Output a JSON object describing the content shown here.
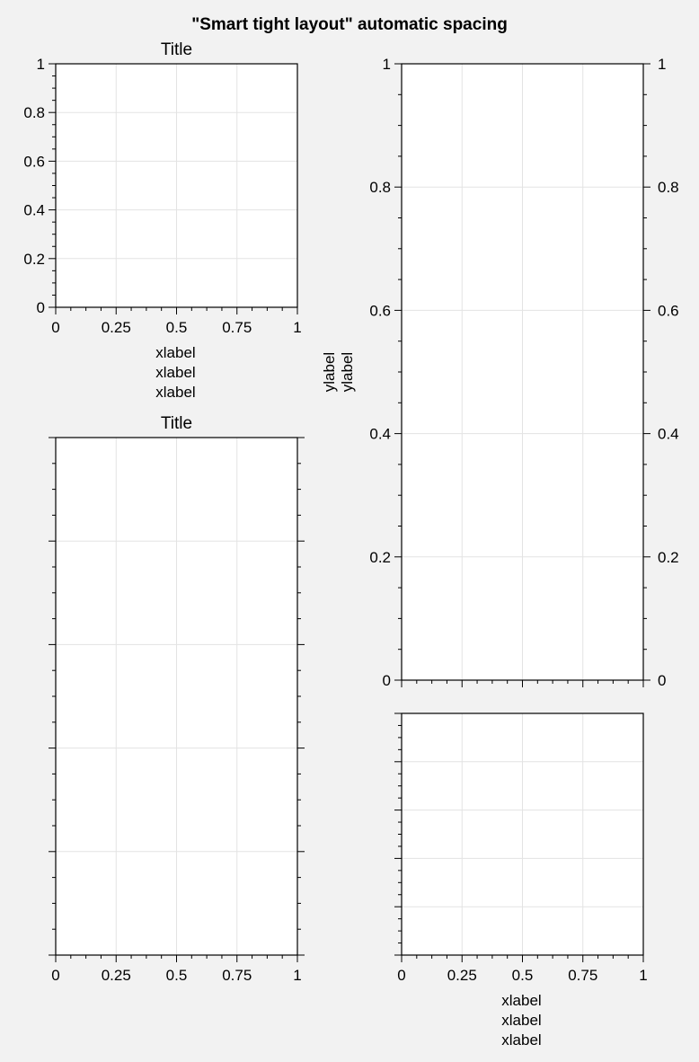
{
  "figure": {
    "suptitle": "\"Smart tight layout\" automatic spacing"
  },
  "colors": {
    "background": "#f2f2f2",
    "axes_face": "#ffffff",
    "grid": "#e3e3e3",
    "spine": "#000000"
  },
  "chart_data": [
    {
      "id": "panel-1",
      "type": "line",
      "title": "Title",
      "xlabel_lines": [
        "xlabel",
        "xlabel",
        "xlabel"
      ],
      "ylabel_lines": [],
      "xlim": [
        0,
        1
      ],
      "ylim": [
        0,
        1
      ],
      "xticks": [
        0,
        0.25,
        0.5,
        0.75,
        1
      ],
      "xticklabels": [
        "0",
        "0.25",
        "0.5",
        "0.75",
        "1"
      ],
      "yticks": [
        0,
        0.2,
        0.4,
        0.6,
        0.8,
        1
      ],
      "yticklabels": [
        "0",
        "0.2",
        "0.4",
        "0.6",
        "0.8",
        "1"
      ],
      "show_left_labels": true,
      "show_right_labels": false,
      "right_ticks": false,
      "grid": true,
      "x_minor_step": 0.0625,
      "y_minor_step": 0.05,
      "series": []
    },
    {
      "id": "panel-2",
      "type": "line",
      "title": "",
      "xlabel_lines": [],
      "ylabel_lines": [
        "ylabel",
        "ylabel"
      ],
      "xlim": [
        0,
        1
      ],
      "ylim": [
        0,
        1
      ],
      "xticks": [
        0,
        0.25,
        0.5,
        0.75,
        1
      ],
      "xticklabels": [],
      "yticks": [
        0,
        0.2,
        0.4,
        0.6,
        0.8,
        1
      ],
      "yticklabels": [
        "0",
        "0.2",
        "0.4",
        "0.6",
        "0.8",
        "1"
      ],
      "show_left_labels": true,
      "show_right_labels": true,
      "right_ticks": true,
      "grid": true,
      "x_minor_step": 0.0625,
      "y_minor_step": 0.05,
      "series": []
    },
    {
      "id": "panel-3",
      "type": "line",
      "title": "Title",
      "xlabel_lines": [],
      "ylabel_lines": [],
      "xlim": [
        0,
        1
      ],
      "ylim": [
        0,
        1
      ],
      "xticks": [
        0,
        0.25,
        0.5,
        0.75,
        1
      ],
      "xticklabels": [
        "0",
        "0.25",
        "0.5",
        "0.75",
        "1"
      ],
      "yticks": [
        0,
        0.2,
        0.4,
        0.6,
        0.8,
        1
      ],
      "yticklabels": [],
      "show_left_labels": false,
      "show_right_labels": false,
      "right_ticks": true,
      "grid": true,
      "x_minor_step": 0.0625,
      "y_minor_step": 0.05,
      "series": []
    },
    {
      "id": "panel-4",
      "type": "line",
      "title": "",
      "xlabel_lines": [
        "xlabel",
        "xlabel",
        "xlabel"
      ],
      "ylabel_lines": [],
      "xlim": [
        0,
        1
      ],
      "ylim": [
        0,
        1
      ],
      "xticks": [
        0,
        0.25,
        0.5,
        0.75,
        1
      ],
      "xticklabels": [
        "0",
        "0.25",
        "0.5",
        "0.75",
        "1"
      ],
      "yticks": [
        0,
        0.2,
        0.4,
        0.6,
        0.8,
        1
      ],
      "yticklabels": [],
      "show_left_labels": false,
      "show_right_labels": false,
      "right_ticks": false,
      "grid": true,
      "x_minor_step": 0.0625,
      "y_minor_step": 0.05,
      "series": []
    }
  ]
}
